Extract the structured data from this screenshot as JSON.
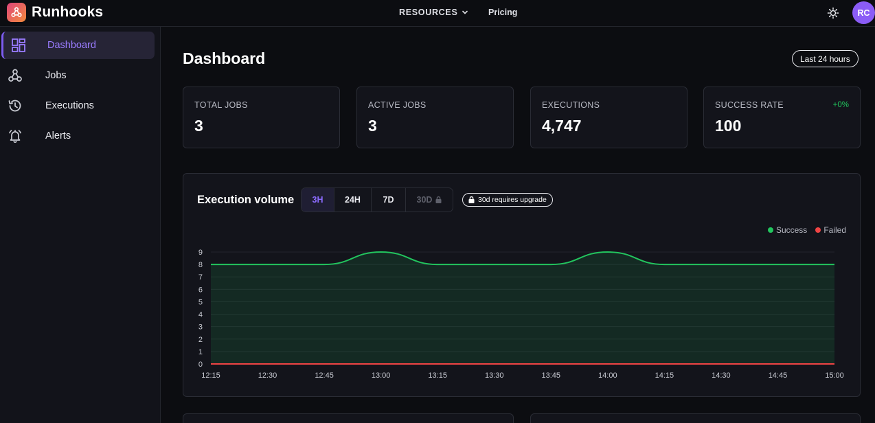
{
  "app": {
    "brand": "Runhooks"
  },
  "topnav": {
    "resources_label": "RESOURCES",
    "pricing_label": "Pricing",
    "avatar_initials": "RC"
  },
  "sidebar": {
    "items": [
      {
        "label": "Dashboard",
        "icon": "dashboard-grid-icon",
        "active": true
      },
      {
        "label": "Jobs",
        "icon": "webhook-icon",
        "active": false
      },
      {
        "label": "Executions",
        "icon": "history-icon",
        "active": false
      },
      {
        "label": "Alerts",
        "icon": "bell-icon",
        "active": false
      }
    ]
  },
  "main": {
    "title": "Dashboard",
    "time_range": "Last 24 hours",
    "stats": [
      {
        "label": "TOTAL JOBS",
        "value": "3",
        "delta": ""
      },
      {
        "label": "ACTIVE JOBS",
        "value": "3",
        "delta": ""
      },
      {
        "label": "EXECUTIONS",
        "value": "4,747",
        "delta": ""
      },
      {
        "label": "SUCCESS RATE",
        "value": "100",
        "delta": "+0%"
      }
    ]
  },
  "chart_section": {
    "title": "Execution volume",
    "ranges": [
      {
        "label": "3H",
        "active": true,
        "locked": false
      },
      {
        "label": "24H",
        "active": false,
        "locked": false
      },
      {
        "label": "7D",
        "active": false,
        "locked": false
      },
      {
        "label": "30D",
        "active": false,
        "locked": true
      }
    ],
    "upgrade_note": "30d requires upgrade"
  },
  "colors": {
    "accent": "#8b5cf6",
    "success": "#22c55e",
    "failed": "#ef4444",
    "background": "#0c0d11",
    "card": "#13141b"
  },
  "chart_data": {
    "type": "area",
    "x": [
      "12:15",
      "12:30",
      "12:45",
      "13:00",
      "13:15",
      "13:30",
      "13:45",
      "14:00",
      "14:15",
      "14:30",
      "14:45",
      "15:00"
    ],
    "series": [
      {
        "name": "Success",
        "color": "#22c55e",
        "values": [
          8,
          8,
          8,
          9,
          8,
          8,
          8,
          9,
          8,
          8,
          8,
          8
        ]
      },
      {
        "name": "Failed",
        "color": "#ef4444",
        "values": [
          0,
          0,
          0,
          0,
          0,
          0,
          0,
          0,
          0,
          0,
          0,
          0
        ]
      }
    ],
    "y_ticks": [
      "0",
      "1",
      "2",
      "3",
      "4",
      "5",
      "6",
      "7",
      "8",
      "9"
    ],
    "ylim": [
      0,
      9
    ],
    "grid": true,
    "legend_position": "top-right"
  }
}
